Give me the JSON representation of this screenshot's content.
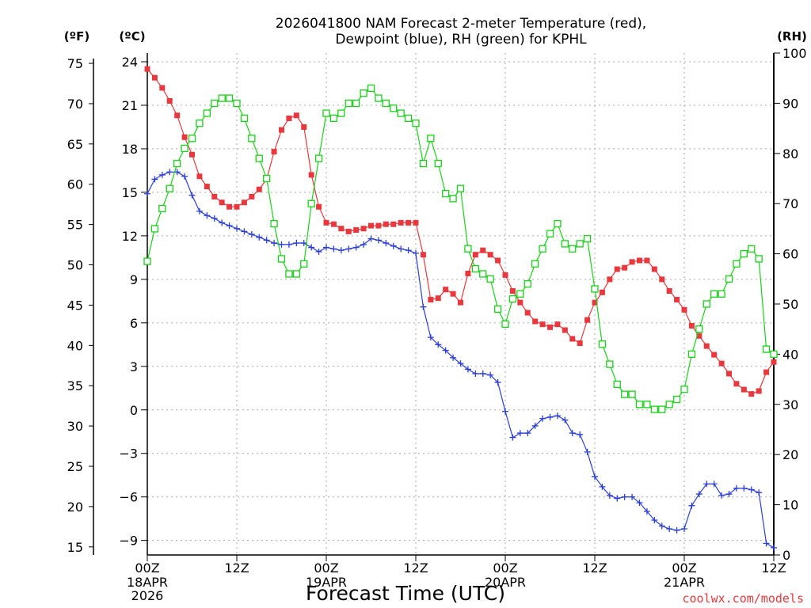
{
  "title_line1": "2026041800 NAM Forecast 2-meter Temperature (red),",
  "title_line2": "Dewpoint (blue), RH (green) for KPHL",
  "unit_f": "(ºF)",
  "unit_c": "(ºC)",
  "unit_rh": "(RH)",
  "xlabel": "Forecast Time (UTC)",
  "credit": "coolwx.com/models",
  "colors": {
    "temperature": "#e8383d",
    "dewpoint": "#2b3fd8",
    "rh": "#19d219",
    "grid": "#aaaaaa"
  },
  "chart_data": {
    "type": "line",
    "title": "2026041800 NAM Forecast 2-meter Temperature (red), Dewpoint (blue), RH (green) for KPHL",
    "x_unit": "forecast hour from 2026-04-18 00Z",
    "x_ticks": [
      "00Z",
      "12Z",
      "00Z",
      "12Z",
      "00Z",
      "12Z",
      "00Z",
      "12Z"
    ],
    "x_date_labels": [
      {
        "tick": 0,
        "lines": [
          "18APR",
          "2026"
        ]
      },
      {
        "tick": 2,
        "lines": [
          "19APR"
        ]
      },
      {
        "tick": 4,
        "lines": [
          "20APR"
        ]
      },
      {
        "tick": 6,
        "lines": [
          "21APR"
        ]
      }
    ],
    "xlim": [
      0,
      84
    ],
    "y_left_celsius": {
      "ticks": [
        "24",
        "21",
        "18",
        "15",
        "12",
        "9",
        "6",
        "3",
        "0",
        "−3",
        "−6",
        "−9"
      ],
      "ylim": [
        -10,
        24.6
      ]
    },
    "y_left_fahrenheit": {
      "ticks": [
        "75",
        "70",
        "65",
        "60",
        "55",
        "50",
        "45",
        "40",
        "35",
        "30",
        "25",
        "20",
        "15"
      ]
    },
    "y_right_rh": {
      "ticks": [
        "100",
        "90",
        "80",
        "70",
        "60",
        "50",
        "40",
        "30",
        "20",
        "10",
        "0"
      ],
      "ylim": [
        0,
        100
      ]
    },
    "grid": true,
    "series": [
      {
        "name": "2-meter Temperature",
        "axis": "celsius",
        "marker": "filled-square",
        "x": [
          0,
          1,
          2,
          3,
          4,
          5,
          6,
          7,
          8,
          9,
          10,
          11,
          12,
          13,
          14,
          15,
          16,
          17,
          18,
          19,
          20,
          21,
          22,
          23,
          24,
          25,
          26,
          27,
          28,
          29,
          30,
          31,
          32,
          33,
          34,
          35,
          36,
          37,
          38,
          39,
          40,
          41,
          42,
          43,
          44,
          45,
          46,
          47,
          48,
          49,
          50,
          51,
          52,
          53,
          54,
          55,
          56,
          57,
          58,
          59,
          60,
          61,
          62,
          63,
          64,
          65,
          66,
          67,
          68,
          69,
          70,
          71,
          72,
          73,
          74,
          75,
          76,
          77,
          78,
          79,
          80,
          81,
          82,
          83,
          84
        ],
        "y": [
          23.5,
          22.9,
          22.2,
          21.3,
          20.3,
          18.8,
          17.6,
          16.1,
          15.4,
          14.7,
          14.3,
          14.0,
          14.0,
          14.3,
          14.7,
          15.2,
          15.9,
          17.8,
          19.3,
          20.1,
          20.3,
          19.5,
          16.2,
          14.0,
          12.9,
          12.8,
          12.5,
          12.3,
          12.4,
          12.5,
          12.7,
          12.7,
          12.8,
          12.8,
          12.9,
          12.9,
          12.9,
          10.7,
          7.6,
          7.7,
          8.3,
          8.0,
          7.4,
          9.4,
          10.7,
          11.0,
          10.7,
          10.3,
          9.3,
          8.2,
          7.4,
          6.7,
          6.1,
          5.9,
          5.7,
          5.9,
          5.5,
          4.9,
          4.6,
          6.2,
          7.4,
          8.1,
          9.0,
          9.7,
          9.8,
          10.2,
          10.3,
          10.3,
          9.7,
          9.0,
          8.2,
          7.6,
          6.9,
          5.8,
          5.1,
          4.4,
          3.8,
          3.2,
          2.5,
          1.8,
          1.4,
          1.1,
          1.3,
          2.6,
          3.3
        ]
      },
      {
        "name": "Dewpoint",
        "axis": "celsius",
        "marker": "plus",
        "x": [
          0,
          1,
          2,
          3,
          4,
          5,
          6,
          7,
          8,
          9,
          10,
          11,
          12,
          13,
          14,
          15,
          16,
          17,
          18,
          19,
          20,
          21,
          22,
          23,
          24,
          25,
          26,
          27,
          28,
          29,
          30,
          31,
          32,
          33,
          34,
          35,
          36,
          37,
          38,
          39,
          40,
          41,
          42,
          43,
          44,
          45,
          46,
          47,
          48,
          49,
          50,
          51,
          52,
          53,
          54,
          55,
          56,
          57,
          58,
          59,
          60,
          61,
          62,
          63,
          64,
          65,
          66,
          67,
          68,
          69,
          70,
          71,
          72,
          73,
          74,
          75,
          76,
          77,
          78,
          79,
          80,
          81,
          82,
          83,
          84
        ],
        "y": [
          14.9,
          15.9,
          16.2,
          16.4,
          16.4,
          16.1,
          14.8,
          13.7,
          13.4,
          13.2,
          12.9,
          12.7,
          12.5,
          12.3,
          12.1,
          11.9,
          11.7,
          11.5,
          11.4,
          11.4,
          11.5,
          11.5,
          11.2,
          10.9,
          11.2,
          11.1,
          11.0,
          11.1,
          11.2,
          11.4,
          11.8,
          11.7,
          11.5,
          11.3,
          11.1,
          11.0,
          10.8,
          7.1,
          5.0,
          4.5,
          4.1,
          3.6,
          3.2,
          2.8,
          2.5,
          2.5,
          2.4,
          1.9,
          -0.1,
          -1.9,
          -1.6,
          -1.6,
          -1.1,
          -0.6,
          -0.5,
          -0.4,
          -0.7,
          -1.6,
          -1.7,
          -2.9,
          -4.6,
          -5.3,
          -5.9,
          -6.1,
          -6.0,
          -6.0,
          -6.4,
          -7.0,
          -7.6,
          -8.0,
          -8.2,
          -8.3,
          -8.2,
          -6.6,
          -5.8,
          -5.1,
          -5.1,
          -5.9,
          -5.8,
          -5.4,
          -5.4,
          -5.5,
          -5.7,
          -9.2,
          -9.5
        ]
      },
      {
        "name": "RH",
        "axis": "rh",
        "marker": "open-square",
        "x": [
          0,
          1,
          2,
          3,
          4,
          5,
          6,
          7,
          8,
          9,
          10,
          11,
          12,
          13,
          14,
          15,
          16,
          17,
          18,
          19,
          20,
          21,
          22,
          23,
          24,
          25,
          26,
          27,
          28,
          29,
          30,
          31,
          32,
          33,
          34,
          35,
          36,
          37,
          38,
          39,
          40,
          41,
          42,
          43,
          44,
          45,
          46,
          47,
          48,
          49,
          50,
          51,
          52,
          53,
          54,
          55,
          56,
          57,
          58,
          59,
          60,
          61,
          62,
          63,
          64,
          65,
          66,
          67,
          68,
          69,
          70,
          71,
          72,
          73,
          74,
          75,
          76,
          77,
          78,
          79,
          80,
          81,
          82,
          83,
          84
        ],
        "y": [
          58.5,
          65,
          69,
          73,
          78,
          81,
          83,
          86,
          88,
          90,
          91,
          91,
          90,
          87,
          83,
          79,
          75,
          66,
          59,
          56,
          56,
          58,
          70,
          79,
          88,
          87,
          88,
          90,
          90,
          92,
          93,
          91,
          90,
          89,
          88,
          87,
          86,
          78,
          83,
          78,
          72,
          71,
          73,
          61,
          57,
          56,
          55,
          49,
          46,
          51,
          52,
          54,
          58,
          61,
          64,
          66,
          62,
          61,
          62,
          63,
          53,
          42,
          38,
          34,
          32,
          32,
          30,
          30,
          29,
          29,
          30,
          31,
          33,
          40,
          45,
          50,
          52,
          52,
          55,
          58,
          60,
          61,
          59,
          41,
          40
        ]
      }
    ]
  }
}
